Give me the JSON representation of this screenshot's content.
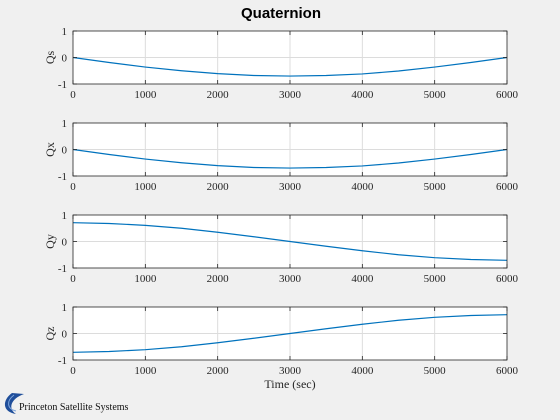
{
  "figure": {
    "title": "Quaternion",
    "logo_text": "Princeton Satellite Systems"
  },
  "colors": {
    "background": "#f0f0f0",
    "axes_face": "#ffffff",
    "line": "#0072bd",
    "grid": "#dcdcdc",
    "axis": "#262626",
    "logo_swoosh": "#1f4e9a"
  },
  "chart_data": [
    {
      "type": "line",
      "title": "Quaternion",
      "ylabel": "Qs",
      "xlabel": "",
      "xlim": [
        0,
        6000
      ],
      "ylim": [
        -1,
        1
      ],
      "x_ticks": [
        0,
        1000,
        2000,
        3000,
        4000,
        5000,
        6000
      ],
      "y_ticks": [
        -1,
        0,
        1
      ],
      "grid": true,
      "x": [
        0,
        500,
        1000,
        1500,
        2000,
        2500,
        3000,
        3500,
        4000,
        4500,
        5000,
        5500,
        6000
      ],
      "series": [
        {
          "values": [
            0,
            -0.19,
            -0.36,
            -0.5,
            -0.61,
            -0.68,
            -0.7,
            -0.68,
            -0.62,
            -0.51,
            -0.36,
            -0.19,
            0
          ]
        }
      ]
    },
    {
      "type": "line",
      "ylabel": "Qx",
      "xlabel": "",
      "xlim": [
        0,
        6000
      ],
      "ylim": [
        -1,
        1
      ],
      "x_ticks": [
        0,
        1000,
        2000,
        3000,
        4000,
        5000,
        6000
      ],
      "y_ticks": [
        -1,
        0,
        1
      ],
      "grid": true,
      "x": [
        0,
        500,
        1000,
        1500,
        2000,
        2500,
        3000,
        3500,
        4000,
        4500,
        5000,
        5500,
        6000
      ],
      "series": [
        {
          "values": [
            0,
            -0.19,
            -0.36,
            -0.5,
            -0.61,
            -0.68,
            -0.7,
            -0.68,
            -0.62,
            -0.51,
            -0.36,
            -0.19,
            0
          ]
        }
      ]
    },
    {
      "type": "line",
      "ylabel": "Qy",
      "xlabel": "",
      "xlim": [
        0,
        6000
      ],
      "ylim": [
        -1,
        1
      ],
      "x_ticks": [
        0,
        1000,
        2000,
        3000,
        4000,
        5000,
        6000
      ],
      "y_ticks": [
        -1,
        0,
        1
      ],
      "grid": true,
      "x": [
        0,
        500,
        1000,
        1500,
        2000,
        2500,
        3000,
        3500,
        4000,
        4500,
        5000,
        5500,
        6000
      ],
      "series": [
        {
          "values": [
            0.71,
            0.68,
            0.61,
            0.5,
            0.35,
            0.18,
            0,
            -0.18,
            -0.35,
            -0.5,
            -0.61,
            -0.68,
            -0.71
          ]
        }
      ]
    },
    {
      "type": "line",
      "ylabel": "Qz",
      "xlabel": "Time (sec)",
      "xlim": [
        0,
        6000
      ],
      "ylim": [
        -1,
        1
      ],
      "x_ticks": [
        0,
        1000,
        2000,
        3000,
        4000,
        5000,
        6000
      ],
      "y_ticks": [
        -1,
        0,
        1
      ],
      "grid": true,
      "x": [
        0,
        500,
        1000,
        1500,
        2000,
        2500,
        3000,
        3500,
        4000,
        4500,
        5000,
        5500,
        6000
      ],
      "series": [
        {
          "values": [
            -0.71,
            -0.68,
            -0.61,
            -0.5,
            -0.35,
            -0.18,
            0,
            0.18,
            0.35,
            0.5,
            0.61,
            0.68,
            0.71
          ]
        }
      ]
    }
  ]
}
